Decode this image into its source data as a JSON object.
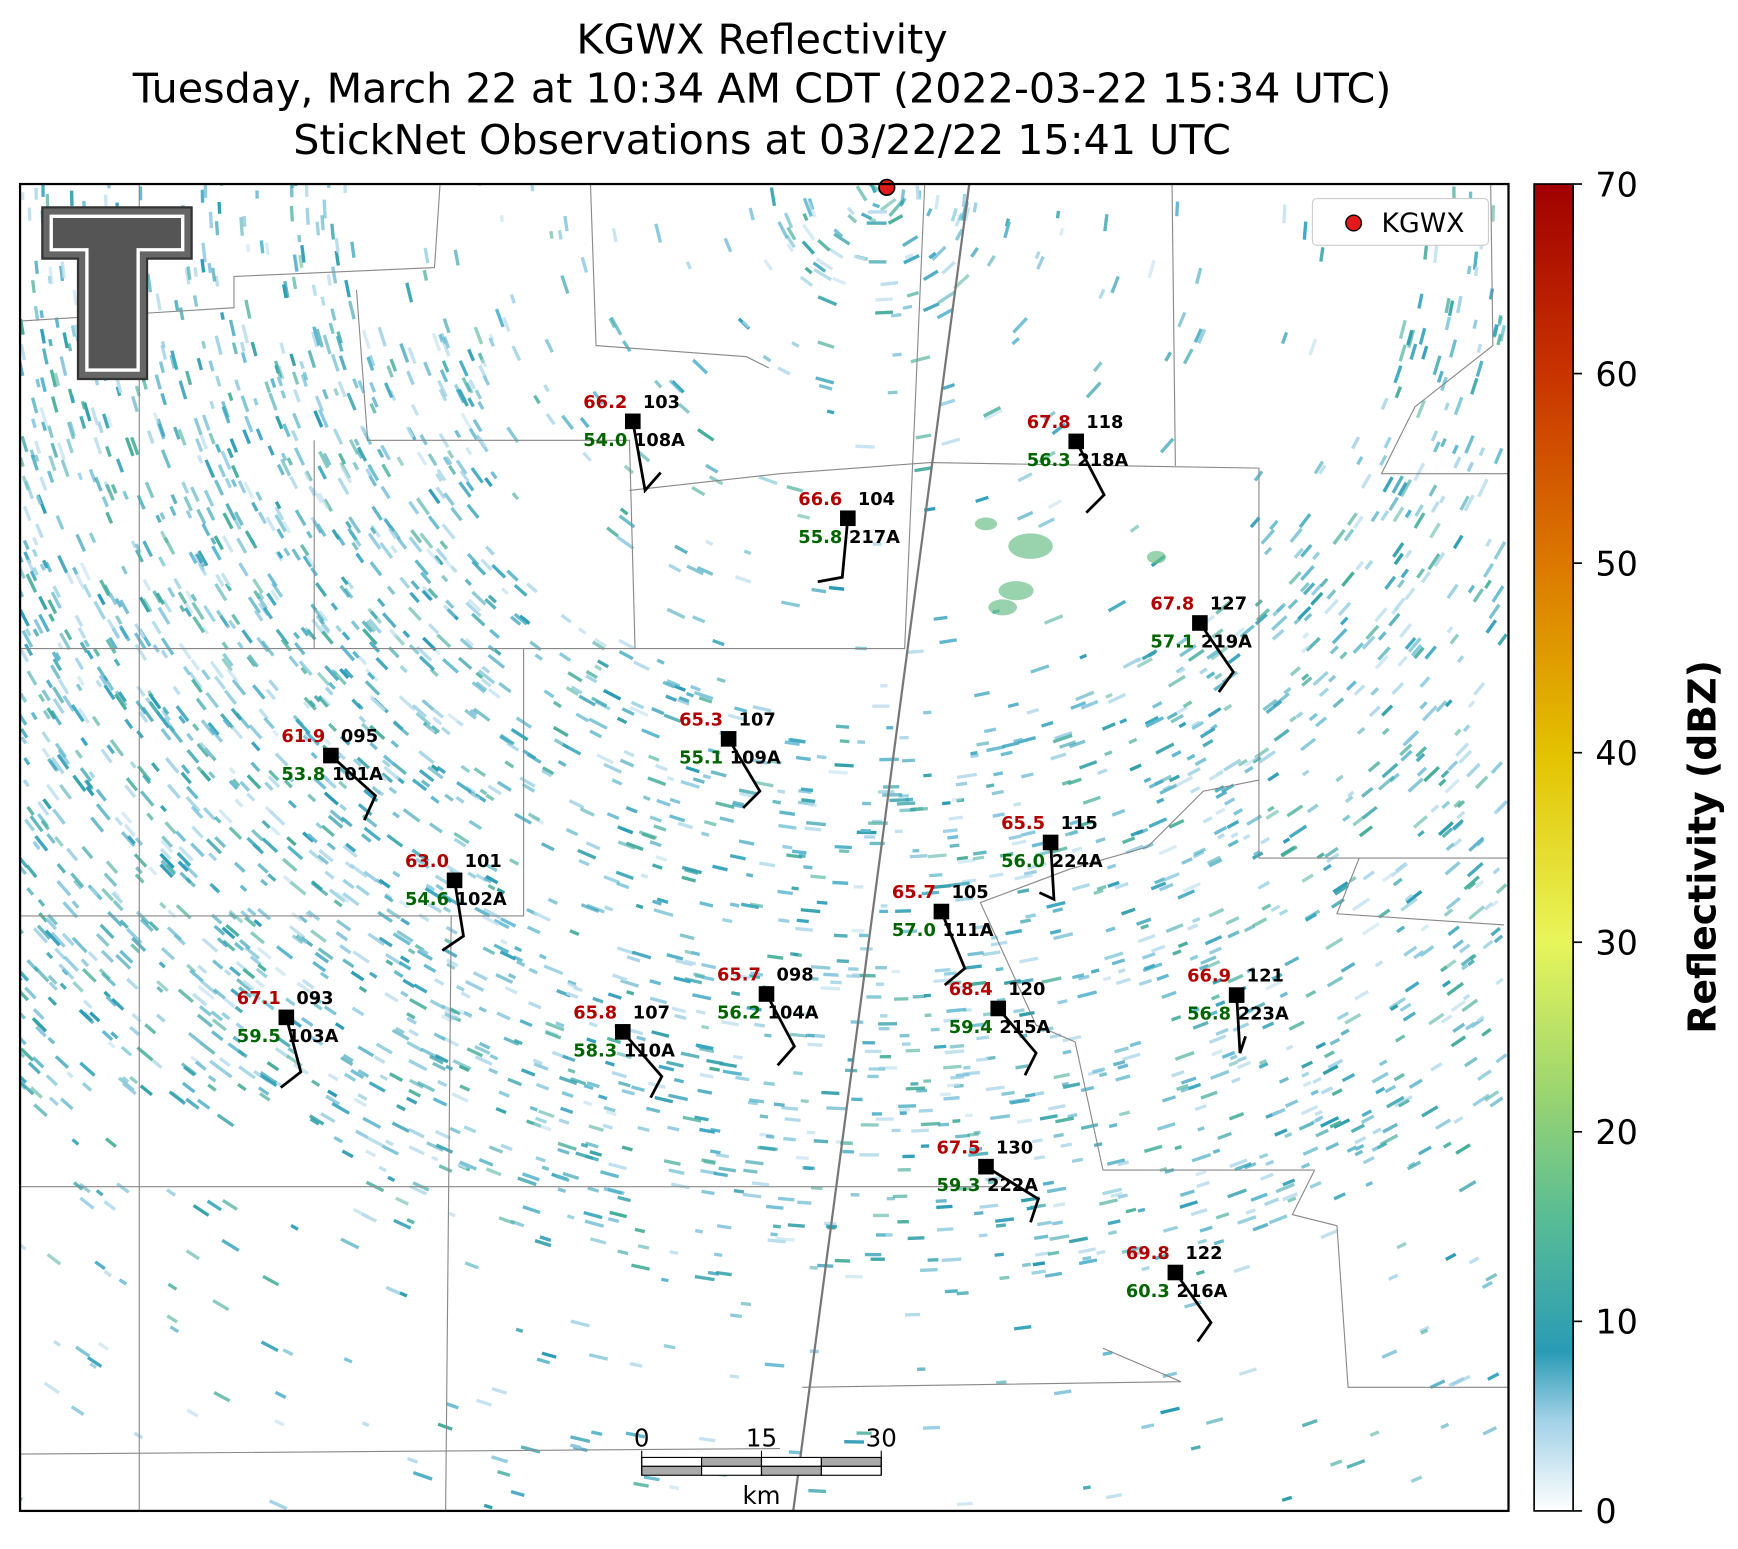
{
  "title": [
    "KGWX Reflectivity",
    "Tuesday, March 22 at 10:34 AM CDT (2022-03-22 15:34 UTC)",
    "StickNet Observations at 03/22/22 15:41 UTC"
  ],
  "legend": {
    "label": "KGWX"
  },
  "colorbar": {
    "label": "Reflectivity (dBZ)",
    "lim": [
      0,
      70
    ],
    "ticks": [
      0,
      10,
      20,
      30,
      40,
      50,
      60,
      70
    ]
  },
  "scale_bar": {
    "ticks": [
      0,
      15,
      30
    ],
    "unit": "km"
  },
  "stations": [
    {
      "id": "103",
      "name": "108A",
      "temperature": "66.2",
      "dewpoint": "54.0"
    },
    {
      "id": "104",
      "name": "217A",
      "temperature": "66.6",
      "dewpoint": "55.8"
    },
    {
      "id": "118",
      "name": "218A",
      "temperature": "67.8",
      "dewpoint": "56.3"
    },
    {
      "id": "127",
      "name": "219A",
      "temperature": "67.8",
      "dewpoint": "57.1"
    },
    {
      "id": "107",
      "name": "109A",
      "temperature": "65.3",
      "dewpoint": "55.1"
    },
    {
      "id": "095",
      "name": "101A",
      "temperature": "61.9",
      "dewpoint": "53.8"
    },
    {
      "id": "101",
      "name": "102A",
      "temperature": "63.0",
      "dewpoint": "54.6"
    },
    {
      "id": "115",
      "name": "224A",
      "temperature": "65.5",
      "dewpoint": "56.0"
    },
    {
      "id": "105",
      "name": "111A",
      "temperature": "65.7",
      "dewpoint": "57.0"
    },
    {
      "id": "093",
      "name": "103A",
      "temperature": "67.1",
      "dewpoint": "59.5"
    },
    {
      "id": "107",
      "name": "110A",
      "temperature": "65.8",
      "dewpoint": "58.3"
    },
    {
      "id": "098",
      "name": "104A",
      "temperature": "65.7",
      "dewpoint": "56.2"
    },
    {
      "id": "120",
      "name": "215A",
      "temperature": "68.4",
      "dewpoint": "59.4"
    },
    {
      "id": "121",
      "name": "223A",
      "temperature": "66.9",
      "dewpoint": "56.8"
    },
    {
      "id": "130",
      "name": "222A",
      "temperature": "67.5",
      "dewpoint": "59.3"
    },
    {
      "id": "122",
      "name": "216A",
      "temperature": "69.8",
      "dewpoint": "60.3"
    }
  ]
}
